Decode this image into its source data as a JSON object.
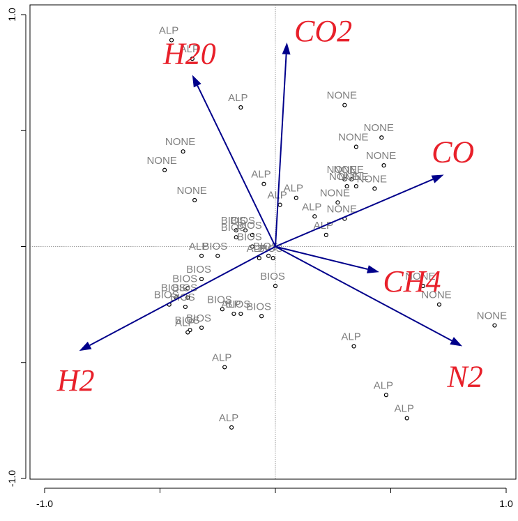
{
  "chart_data": {
    "type": "scatter",
    "xlim": [
      -1.0,
      1.0
    ],
    "ylim": [
      -1.0,
      1.0
    ],
    "x_ticks": [
      -1.0,
      -0.5,
      0.0,
      0.5,
      1.0
    ],
    "y_ticks": [
      -1.0,
      -0.5,
      0.0,
      0.5,
      1.0
    ],
    "x_tick_labels": [
      "-1.0",
      "",
      "",
      "",
      "1.0"
    ],
    "y_tick_labels": [
      "-1.0",
      "",
      "",
      "",
      "1.0"
    ],
    "reference_lines": {
      "x": 0.0,
      "y": 0.0
    },
    "grid": false,
    "colors": {
      "points": "#000000",
      "labels": "#7f7f7f",
      "vectors": "#00008b",
      "vector_labels": "#e8202a"
    },
    "points": [
      {
        "label": "ALP",
        "x": -0.45,
        "y": 0.89
      },
      {
        "label": "ALP",
        "x": -0.36,
        "y": 0.81
      },
      {
        "label": "ALP",
        "x": -0.15,
        "y": 0.6
      },
      {
        "label": "NONE",
        "x": -0.4,
        "y": 0.41
      },
      {
        "label": "NONE",
        "x": -0.48,
        "y": 0.33
      },
      {
        "label": "NONE",
        "x": -0.35,
        "y": 0.2
      },
      {
        "label": "ALP",
        "x": -0.05,
        "y": 0.27
      },
      {
        "label": "ALP",
        "x": 0.02,
        "y": 0.18
      },
      {
        "label": "BIOS",
        "x": -0.17,
        "y": 0.07
      },
      {
        "label": "BIOS",
        "x": -0.13,
        "y": 0.07
      },
      {
        "label": "BIOS",
        "x": -0.1,
        "y": 0.05
      },
      {
        "label": "BIOS",
        "x": -0.17,
        "y": 0.04
      },
      {
        "label": "BIOS",
        "x": -0.1,
        "y": 0.0
      },
      {
        "label": "BIOS",
        "x": -0.25,
        "y": -0.04
      },
      {
        "label": "ALP",
        "x": -0.32,
        "y": -0.04
      },
      {
        "label": "BIOS",
        "x": -0.03,
        "y": -0.04
      },
      {
        "label": "ALP",
        "x": -0.07,
        "y": -0.05
      },
      {
        "label": "BIOS",
        "x": -0.01,
        "y": -0.05
      },
      {
        "label": "NONE",
        "x": 0.3,
        "y": 0.61
      },
      {
        "label": "NONE",
        "x": 0.46,
        "y": 0.47
      },
      {
        "label": "NONE",
        "x": 0.35,
        "y": 0.43
      },
      {
        "label": "NONE",
        "x": 0.47,
        "y": 0.35
      },
      {
        "label": "NONE",
        "x": 0.3,
        "y": 0.29
      },
      {
        "label": "NONE",
        "x": 0.33,
        "y": 0.29
      },
      {
        "label": "NONE",
        "x": 0.35,
        "y": 0.26
      },
      {
        "label": "NONE",
        "x": 0.31,
        "y": 0.26
      },
      {
        "label": "NONE",
        "x": 0.43,
        "y": 0.25
      },
      {
        "label": "NONE",
        "x": 0.27,
        "y": 0.19
      },
      {
        "label": "ALP",
        "x": 0.09,
        "y": 0.21
      },
      {
        "label": "ALP",
        "x": 0.17,
        "y": 0.13
      },
      {
        "label": "NONE",
        "x": 0.3,
        "y": 0.12
      },
      {
        "label": "ALP",
        "x": 0.22,
        "y": 0.05
      },
      {
        "label": "BIOS",
        "x": -0.32,
        "y": -0.14
      },
      {
        "label": "BIOS",
        "x": -0.38,
        "y": -0.18
      },
      {
        "label": "BIOS",
        "x": -0.43,
        "y": -0.22
      },
      {
        "label": "BIOS",
        "x": -0.38,
        "y": -0.22
      },
      {
        "label": "BIOS",
        "x": -0.39,
        "y": -0.26
      },
      {
        "label": "BIOS",
        "x": -0.46,
        "y": -0.25
      },
      {
        "label": "BIOS",
        "x": -0.23,
        "y": -0.27
      },
      {
        "label": "ALP",
        "x": -0.18,
        "y": -0.29
      },
      {
        "label": "BIOS",
        "x": -0.15,
        "y": -0.29
      },
      {
        "label": "BIOS",
        "x": -0.06,
        "y": -0.3
      },
      {
        "label": "BIOS",
        "x": -0.32,
        "y": -0.35
      },
      {
        "label": "BIOS",
        "x": -0.37,
        "y": -0.36
      },
      {
        "label": "ALP",
        "x": -0.38,
        "y": -0.37
      },
      {
        "label": "BIOS",
        "x": 0.0,
        "y": -0.17
      },
      {
        "label": "ALP",
        "x": -0.22,
        "y": -0.52
      },
      {
        "label": "ALP",
        "x": -0.19,
        "y": -0.78
      },
      {
        "label": "NONE",
        "x": 0.64,
        "y": -0.17
      },
      {
        "label": "NONE",
        "x": 0.71,
        "y": -0.25
      },
      {
        "label": "NONE",
        "x": 0.95,
        "y": -0.34
      },
      {
        "label": "ALP",
        "x": 0.34,
        "y": -0.43
      },
      {
        "label": "ALP",
        "x": 0.48,
        "y": -0.64
      },
      {
        "label": "ALP",
        "x": 0.57,
        "y": -0.74
      }
    ],
    "vectors": [
      {
        "name": "H20",
        "x": -0.36,
        "y": 0.74
      },
      {
        "name": "CO2",
        "x": 0.05,
        "y": 0.88
      },
      {
        "name": "CO",
        "x": 0.73,
        "y": 0.31
      },
      {
        "name": "CH4",
        "x": 0.45,
        "y": -0.11
      },
      {
        "name": "N2",
        "x": 0.81,
        "y": -0.43
      },
      {
        "name": "H2",
        "x": -0.85,
        "y": -0.45
      }
    ]
  }
}
